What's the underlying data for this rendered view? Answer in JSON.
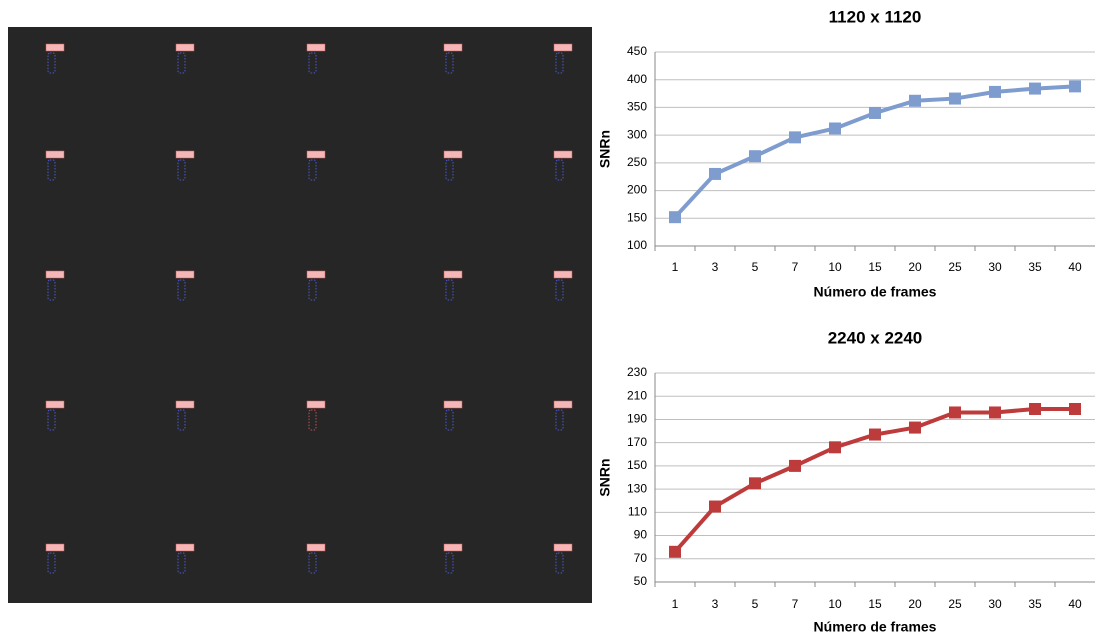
{
  "chart_data": [
    {
      "type": "line",
      "title": "1120 x 1120",
      "y_label": "SNRn",
      "x_label": "Número de frames",
      "categories": [
        "1",
        "3",
        "5",
        "7",
        "10",
        "15",
        "20",
        "25",
        "30",
        "35",
        "40"
      ],
      "values": [
        152,
        230,
        262,
        296,
        312,
        340,
        362,
        366,
        378,
        384,
        388
      ],
      "color": "#7f9ccf",
      "ylim": [
        100,
        450
      ],
      "yticks": [
        100,
        150,
        200,
        250,
        300,
        350,
        400,
        450
      ],
      "grid": true
    },
    {
      "type": "line",
      "title": "2240 x 2240",
      "y_label": "SNRn",
      "x_label": "Número de frames",
      "categories": [
        "1",
        "3",
        "5",
        "7",
        "10",
        "15",
        "20",
        "25",
        "30",
        "35",
        "40"
      ],
      "values": [
        76,
        115,
        135,
        150,
        166,
        177,
        183,
        196,
        196,
        199,
        199
      ],
      "color": "#be3b3b",
      "ylim": [
        50,
        230
      ],
      "yticks": [
        50,
        70,
        90,
        110,
        130,
        150,
        170,
        190,
        210,
        230
      ],
      "grid": true
    }
  ]
}
